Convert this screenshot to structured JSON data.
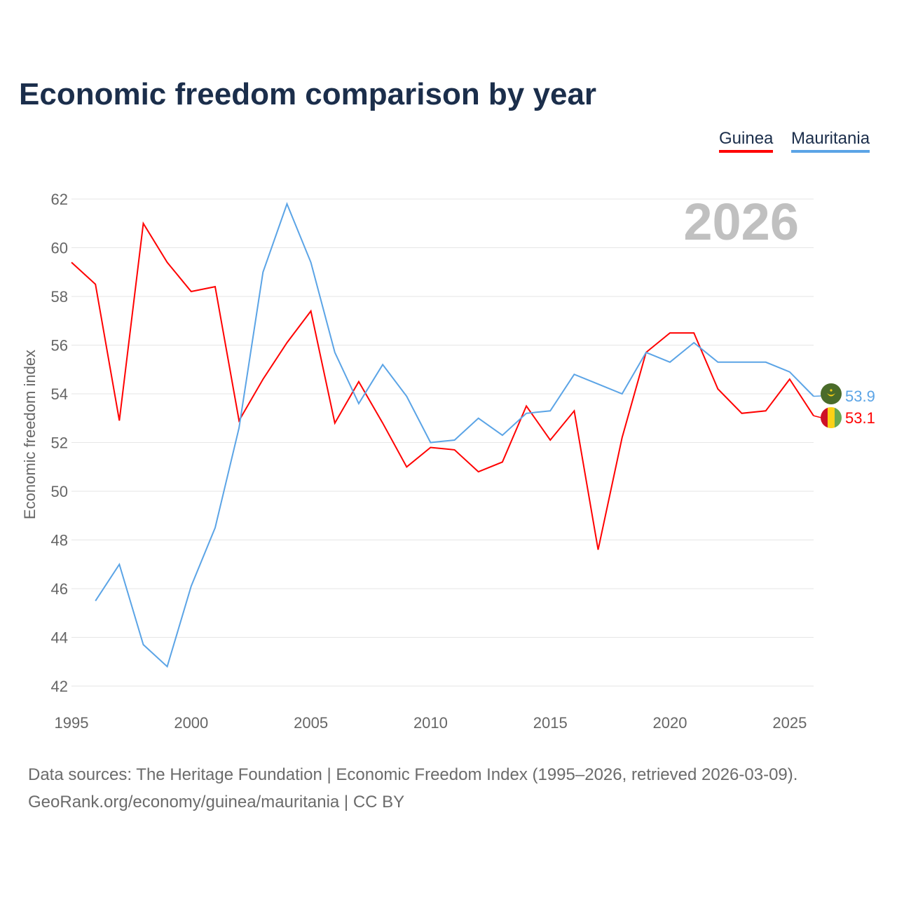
{
  "title": "Economic freedom comparison by year",
  "source_line1": "Data sources: The Heritage Foundation | Economic Freedom Index (1995–2026, retrieved 2026-03-09).",
  "source_line2": "GeoRank.org/economy/guinea/mauritania | CC BY",
  "chart_data": {
    "type": "line",
    "title": "Economic freedom comparison by year",
    "xlabel": "",
    "ylabel": "Economic freedom index",
    "year_watermark": "2026",
    "xlim": [
      1995,
      2026
    ],
    "ylim": [
      42,
      62
    ],
    "xticks": [
      1995,
      2000,
      2005,
      2010,
      2015,
      2020,
      2025
    ],
    "yticks": [
      42,
      44,
      46,
      48,
      50,
      52,
      54,
      56,
      58,
      60,
      62
    ],
    "grid": true,
    "legend_position": "top-right",
    "x": [
      1995,
      1996,
      1997,
      1998,
      1999,
      2000,
      2001,
      2002,
      2003,
      2004,
      2005,
      2006,
      2007,
      2008,
      2009,
      2010,
      2011,
      2012,
      2013,
      2014,
      2015,
      2016,
      2017,
      2018,
      2019,
      2020,
      2021,
      2022,
      2023,
      2024,
      2025,
      2026
    ],
    "series": [
      {
        "name": "Guinea",
        "color": "#ff0000",
        "end_label": "53.1",
        "flag": "guinea-flag",
        "values": [
          59.4,
          58.5,
          52.9,
          61.0,
          59.4,
          58.2,
          58.4,
          52.9,
          54.6,
          56.1,
          57.4,
          52.8,
          54.5,
          52.8,
          51.0,
          51.8,
          51.7,
          50.8,
          51.2,
          53.5,
          52.1,
          53.3,
          47.6,
          52.2,
          55.7,
          56.5,
          56.5,
          54.2,
          53.2,
          53.3,
          54.6,
          53.1
        ]
      },
      {
        "name": "Mauritania",
        "color": "#5ba4e6",
        "end_label": "53.9",
        "flag": "mauritania-flag",
        "values": [
          null,
          45.5,
          47.0,
          43.7,
          42.8,
          46.1,
          48.5,
          52.6,
          59.0,
          61.8,
          59.4,
          55.7,
          53.6,
          55.2,
          53.9,
          52.0,
          52.1,
          53.0,
          52.3,
          53.2,
          53.3,
          54.8,
          54.4,
          54.0,
          55.7,
          55.3,
          56.1,
          55.3,
          55.3,
          55.3,
          54.9,
          53.9
        ]
      }
    ]
  }
}
